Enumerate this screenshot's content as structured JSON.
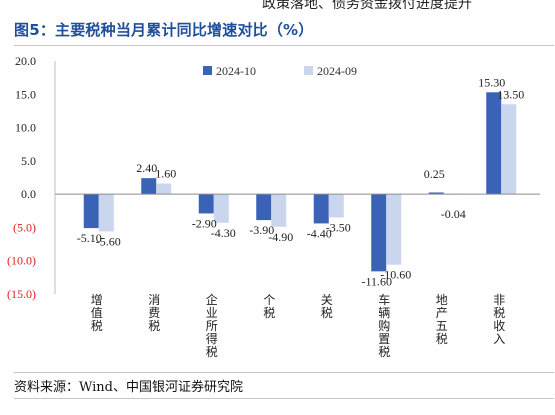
{
  "header": {
    "fragment": "政策落地、债务资金拨付进度提升"
  },
  "figure": {
    "title": "图5：主要税种当月累计同比增速对比（%）",
    "source": "资料来源：Wind、中国银河证券研究院"
  },
  "colors": {
    "series_2024_10": "#3a62b5",
    "series_2024_09": "#c9d6ee",
    "negative_tick": "#e02020",
    "title": "#1f4e9b"
  },
  "chart_data": {
    "type": "bar",
    "categories": [
      "增值税",
      "消费税",
      "企业所得税",
      "个税",
      "关税",
      "车辆购置税",
      "地产五税",
      "非税收入"
    ],
    "series": [
      {
        "name": "2024-10",
        "values": [
          -5.1,
          2.4,
          -2.9,
          -3.9,
          -4.4,
          -11.6,
          0.25,
          15.3
        ],
        "labels": [
          "-5.10",
          "2.40",
          "-2.90",
          "-3.90",
          "-4.40",
          "-11.60",
          "0.25",
          "15.30"
        ]
      },
      {
        "name": "2024-09",
        "values": [
          -5.6,
          1.6,
          -4.3,
          -4.9,
          -3.5,
          -10.6,
          -0.04,
          13.5
        ],
        "labels": [
          "-5.60",
          "1.60",
          "-4.30",
          "-4.90",
          "-3.50",
          "-10.60",
          "-0.04",
          "13.50"
        ]
      }
    ],
    "ylim": [
      -15,
      20
    ],
    "yticks": [
      20,
      15,
      10,
      5,
      0,
      -5,
      -10,
      -15
    ],
    "ytick_labels": [
      "20.0",
      "15.0",
      "10.0",
      "5.0",
      "0.0",
      "(5.0)",
      "(10.0)",
      "(15.0)"
    ],
    "legend_position": "top-center",
    "grid": false
  }
}
